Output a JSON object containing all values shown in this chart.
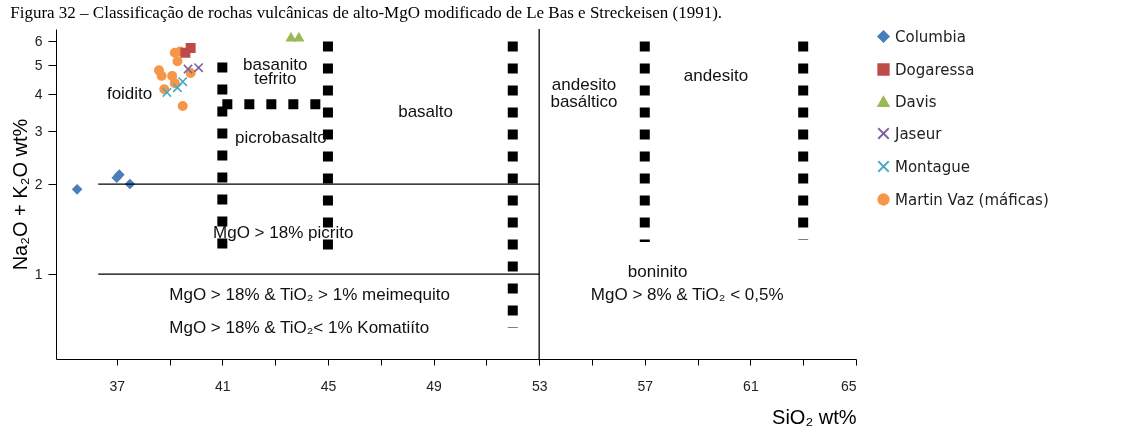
{
  "chart_data": {
    "type": "scatter",
    "title": "Figura 32 – Classificação de rochas vulcânicas de alto-MgO modificado de Le Bas e Streckeisen (1991).",
    "xlabel": "SiO₂ wt%",
    "ylabel": "Na₂O + K₂O wt%",
    "log": "y",
    "legend": "right",
    "xlim": [
      34.7,
      65
    ],
    "ylim": [
      0.52,
      6.6
    ],
    "xticks": [
      37,
      {
        "value": 39,
        "label": null
      },
      41,
      {
        "value": 43,
        "label": null
      },
      45,
      {
        "value": 47,
        "label": null
      },
      49,
      {
        "value": 51,
        "label": null
      },
      53,
      {
        "value": 55,
        "label": null
      },
      57,
      {
        "value": 59,
        "label": null
      },
      61,
      {
        "value": 63,
        "label": null
      },
      65
    ],
    "yticks": [
      1,
      2,
      3,
      4,
      5,
      6
    ],
    "series": [
      {
        "name": "Columbia",
        "color": "#4a7ebb",
        "marker": "diamond",
        "x": [
          35.5,
          37.0,
          37.1,
          37.5
        ],
        "values": [
          1.92,
          2.1,
          2.15,
          2.0
        ]
      },
      {
        "name": "Dogaressa",
        "color": "#be4b48",
        "marker": "square",
        "x": [
          39.6,
          39.8
        ],
        "values": [
          5.5,
          5.7
        ]
      },
      {
        "name": "Davis",
        "color": "#98b954",
        "marker": "triangle",
        "x": [
          43.6,
          43.9
        ],
        "values": [
          6.2,
          6.2
        ]
      },
      {
        "name": "Jaseur",
        "color": "#7d60a0",
        "marker": "cross",
        "x": [
          39.7,
          40.1
        ],
        "values": [
          4.85,
          4.9
        ]
      },
      {
        "name": "Montague",
        "color": "#46aac5",
        "marker": "cross",
        "x": [
          38.9,
          39.3,
          39.5
        ],
        "values": [
          4.05,
          4.2,
          4.4
        ]
      },
      {
        "name": "Martin Vaz (máficas)",
        "color": "#f79646",
        "marker": "circle",
        "x": [
          39.2,
          39.4,
          39.3,
          38.6,
          38.7,
          39.1,
          39.2,
          38.8,
          39.8,
          39.5
        ],
        "values": [
          5.5,
          5.55,
          5.15,
          4.8,
          4.6,
          4.6,
          4.35,
          4.15,
          4.7,
          3.65
        ]
      },
      {
        "type": "line",
        "color": "#000000",
        "line_style": "solid",
        "x": [
          36.3,
          53
        ],
        "values": [
          2,
          2
        ]
      },
      {
        "type": "line",
        "color": "#000000",
        "line_style": "solid",
        "x": [
          36.3,
          53
        ],
        "values": [
          1,
          1
        ]
      },
      {
        "type": "line",
        "color": "#000000",
        "line_style": "dotted",
        "x": [
          41,
          41
        ],
        "values": [
          5.1,
          1.15
        ]
      },
      {
        "type": "line",
        "color": "#000000",
        "line_style": "dotted",
        "x": [
          41,
          45
        ],
        "values": [
          3.7,
          3.7
        ]
      },
      {
        "type": "line",
        "color": "#000000",
        "line_style": "dotted",
        "x": [
          45,
          45
        ],
        "values": [
          6.0,
          1.15
        ]
      },
      {
        "type": "line",
        "color": "#000000",
        "line_style": "dotted",
        "x": [
          52,
          52
        ],
        "values": [
          6.0,
          0.66
        ]
      },
      {
        "type": "line",
        "color": "#000000",
        "line_style": "dotted",
        "x": [
          57,
          57
        ],
        "values": [
          6.0,
          1.28
        ]
      },
      {
        "type": "line",
        "color": "#000000",
        "line_style": "dotted",
        "x": [
          63,
          63
        ],
        "values": [
          6.0,
          1.3
        ]
      }
    ],
    "ref_lines": [
      {
        "axis": "x",
        "value": 53,
        "color": "#000000"
      }
    ],
    "annotations": [
      "foidito",
      "basanito",
      "tefrito",
      "picrobasalto",
      "basalto",
      "andesito",
      "basáltico",
      "andesito",
      "MgO > 18% picrito",
      "MgO > 18% & TiO₂ > 1% meimequito",
      "MgO > 18% & TiO₂< 1% Komatiíto",
      "boninito",
      "MgO > 8% & TiO₂ < 0,5%"
    ]
  }
}
